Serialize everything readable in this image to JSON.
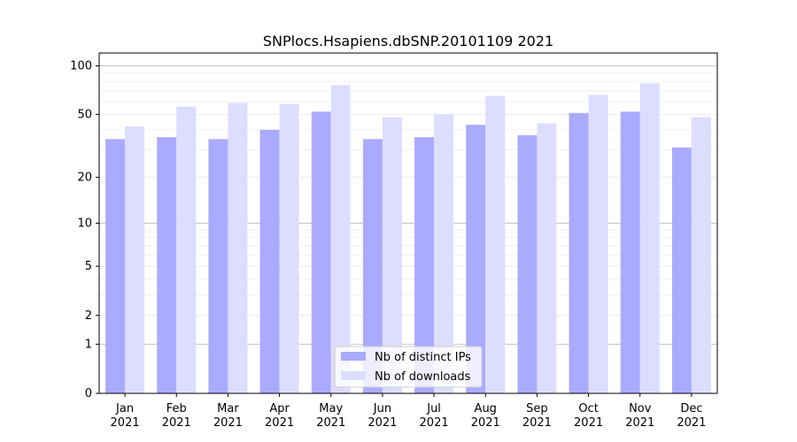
{
  "chart_data": {
    "type": "bar",
    "title": "SNPlocs.Hsapiens.dbSNP.20101109 2021",
    "xlabel": "",
    "ylabel": "",
    "y_scale": "log(1+y)",
    "ylim": [
      0,
      120
    ],
    "y_ticks": [
      0,
      1,
      2,
      5,
      10,
      20,
      50,
      100
    ],
    "grid": true,
    "legend_position": "bottom-center",
    "categories": [
      "Jan\n2021",
      "Feb\n2021",
      "Mar\n2021",
      "Apr\n2021",
      "May\n2021",
      "Jun\n2021",
      "Jul\n2021",
      "Aug\n2021",
      "Sep\n2021",
      "Oct\n2021",
      "Nov\n2021",
      "Dec\n2021"
    ],
    "series": [
      {
        "name": "Nb of distinct IPs",
        "color": "#aaaaff",
        "values": [
          35,
          36,
          35,
          40,
          52,
          35,
          36,
          43,
          37,
          51,
          52,
          31
        ]
      },
      {
        "name": "Nb of downloads",
        "color": "#ddddff",
        "values": [
          42,
          56,
          59,
          58,
          76,
          48,
          50,
          65,
          44,
          66,
          78,
          48
        ]
      }
    ]
  }
}
